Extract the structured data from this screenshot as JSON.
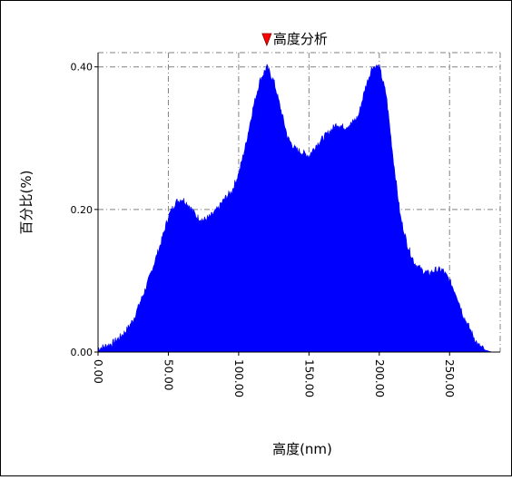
{
  "chart_data": {
    "type": "area",
    "title": "",
    "marker_label": "高度分析",
    "marker_x": 120,
    "xlabel": "高度(nm)",
    "ylabel": "百分比(%)",
    "xlim": [
      0,
      286
    ],
    "ylim": [
      0,
      0.42
    ],
    "x_ticks": [
      0,
      50,
      100,
      150,
      200,
      250
    ],
    "x_tick_labels": [
      "0.00",
      "50.00",
      "100.00",
      "150.00",
      "200.00",
      "250.00"
    ],
    "y_ticks": [
      0,
      0.2,
      0.4
    ],
    "y_tick_labels": [
      "0.00",
      "0.20",
      "0.40"
    ],
    "grid": true,
    "colors": {
      "fill": "#0000ff",
      "marker": "#ff0000",
      "grid": "#808080"
    },
    "series": [
      {
        "x": [
          0,
          5,
          10,
          15,
          20,
          25,
          30,
          35,
          40,
          45,
          50,
          55,
          60,
          65,
          70,
          75,
          80,
          85,
          90,
          95,
          100,
          105,
          110,
          115,
          120,
          125,
          130,
          135,
          140,
          145,
          150,
          155,
          160,
          165,
          170,
          175,
          180,
          185,
          190,
          195,
          200,
          205,
          210,
          215,
          220,
          225,
          230,
          235,
          240,
          245,
          250,
          255,
          260,
          265,
          270,
          275,
          280,
          286
        ],
        "values": [
          0.005,
          0.008,
          0.012,
          0.02,
          0.03,
          0.045,
          0.07,
          0.095,
          0.125,
          0.155,
          0.19,
          0.21,
          0.215,
          0.205,
          0.19,
          0.185,
          0.19,
          0.2,
          0.215,
          0.225,
          0.25,
          0.29,
          0.34,
          0.38,
          0.4,
          0.38,
          0.34,
          0.3,
          0.285,
          0.28,
          0.275,
          0.29,
          0.3,
          0.31,
          0.32,
          0.315,
          0.32,
          0.33,
          0.37,
          0.4,
          0.4,
          0.36,
          0.27,
          0.19,
          0.15,
          0.125,
          0.115,
          0.11,
          0.115,
          0.115,
          0.1,
          0.08,
          0.05,
          0.03,
          0.01,
          0.003,
          0.0,
          0.0
        ]
      }
    ]
  }
}
